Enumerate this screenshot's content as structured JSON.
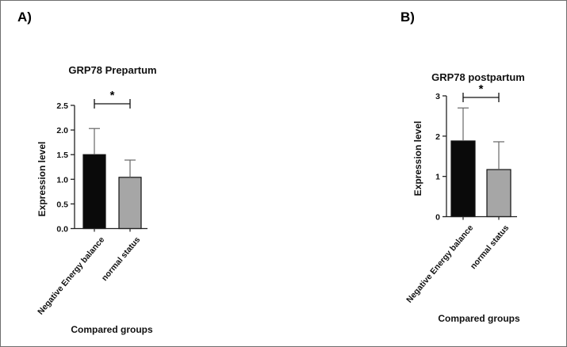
{
  "chart_data": [
    {
      "panel_label": "A)",
      "type": "bar",
      "title": "GRP78 Prepartum",
      "xlabel": "Compared groups",
      "ylabel": "Expression level",
      "categories": [
        "Negative Energy balance",
        "normal status"
      ],
      "values": [
        1.5,
        1.04
      ],
      "error_upper": [
        2.03,
        1.39
      ],
      "error_lower": [
        0,
        0
      ],
      "ylim": [
        0,
        2.5
      ],
      "yticks": [
        0.0,
        0.5,
        1.0,
        1.5,
        2.0,
        2.5
      ],
      "ytick_labels": [
        "0.0",
        "0.5",
        "1.0",
        "1.5",
        "2.0",
        "2.5"
      ],
      "bar_colors": [
        "#0a0a0a",
        "#a6a6a6"
      ],
      "significance": "*",
      "grid": false,
      "legend": "none"
    },
    {
      "panel_label": "B)",
      "type": "bar",
      "title": "GRP78 postpartum",
      "xlabel": "Compared groups",
      "ylabel": "Expression level",
      "categories": [
        "Negative Energy balance",
        "normal status"
      ],
      "values": [
        1.88,
        1.17
      ],
      "error_upper": [
        2.7,
        1.86
      ],
      "error_lower": [
        0,
        0
      ],
      "ylim": [
        0,
        3
      ],
      "yticks": [
        0,
        1,
        2,
        3
      ],
      "ytick_labels": [
        "0",
        "1",
        "2",
        "3"
      ],
      "bar_colors": [
        "#0a0a0a",
        "#a6a6a6"
      ],
      "significance": "*",
      "grid": false,
      "legend": "none"
    }
  ]
}
